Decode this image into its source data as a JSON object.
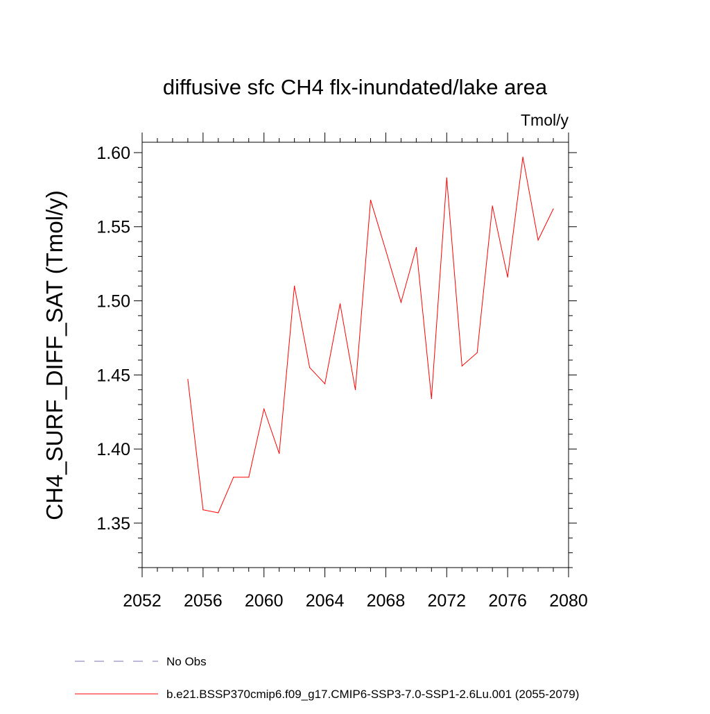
{
  "chart_data": {
    "type": "line",
    "title": "diffusive sfc CH4 flx-inundated/lake area",
    "units_label": "Tmol/y",
    "ylabel": "CH4_SURF_DIFF_SAT  (Tmol/y)",
    "xlabel": "",
    "xlim": [
      2052,
      2080
    ],
    "ylim": [
      1.32,
      1.607
    ],
    "x_ticks": [
      2052,
      2056,
      2060,
      2064,
      2068,
      2072,
      2076,
      2080
    ],
    "x_tick_labels": [
      "2052",
      "2056",
      "2060",
      "2064",
      "2068",
      "2072",
      "2076",
      "2080"
    ],
    "y_ticks": [
      1.35,
      1.4,
      1.45,
      1.5,
      1.55,
      1.6
    ],
    "y_tick_labels": [
      "1.35",
      "1.40",
      "1.45",
      "1.50",
      "1.55",
      "1.60"
    ],
    "grid": false,
    "series": [
      {
        "name": "b.e21.BSSP370cmip6.f09_g17.CMIP6-SSP3-7.0-SSP1-2.6Lu.001 (2055-2079)",
        "color": "#ff0000",
        "x": [
          2055,
          2056,
          2057,
          2058,
          2059,
          2060,
          2061,
          2062,
          2063,
          2064,
          2065,
          2066,
          2067,
          2068,
          2069,
          2070,
          2071,
          2072,
          2073,
          2074,
          2075,
          2076,
          2077,
          2078,
          2079
        ],
        "y": [
          1.447,
          1.359,
          1.357,
          1.381,
          1.381,
          1.427,
          1.397,
          1.51,
          1.455,
          1.444,
          1.498,
          1.44,
          1.568,
          1.534,
          1.499,
          1.536,
          1.434,
          1.583,
          1.456,
          1.465,
          1.564,
          1.516,
          1.597,
          1.541,
          1.562
        ]
      }
    ],
    "legend": {
      "placement": "bottom",
      "entries": [
        {
          "label": "No Obs",
          "color": "#7b6fb0",
          "style": "dashed"
        },
        {
          "label": "b.e21.BSSP370cmip6.f09_g17.CMIP6-SSP3-7.0-SSP1-2.6Lu.001 (2055-2079)",
          "color": "#ff0000",
          "style": "solid"
        }
      ]
    }
  }
}
